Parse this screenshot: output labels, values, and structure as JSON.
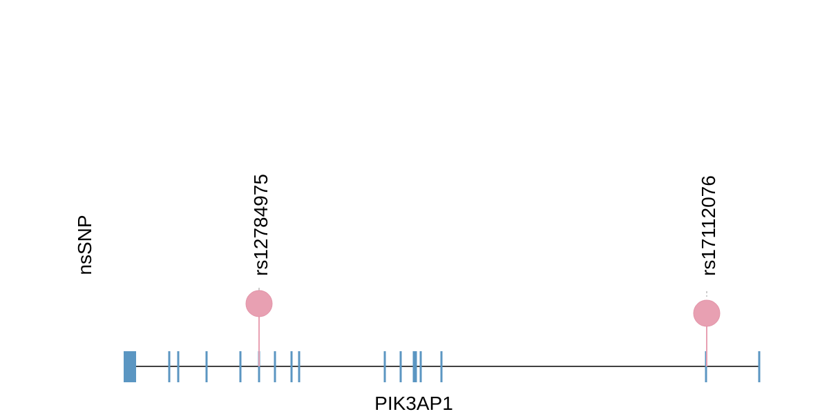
{
  "track_label": "nsSNP",
  "gene": "PIK3AP1",
  "snps": [
    {
      "label": "rs12784975"
    },
    {
      "label": "rs17112076"
    }
  ]
}
